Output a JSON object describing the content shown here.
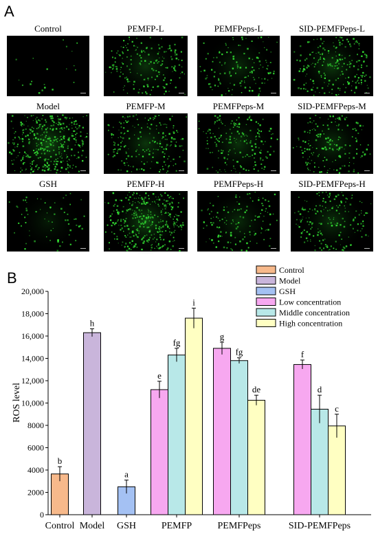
{
  "panel_a": {
    "label": "A",
    "images": [
      {
        "caption": "Control",
        "intensity": 0.03
      },
      {
        "caption": "PEMFP-L",
        "intensity": 0.45
      },
      {
        "caption": "PEMFPeps-L",
        "intensity": 0.35
      },
      {
        "caption": "SID-PEMFPeps-L",
        "intensity": 0.55
      },
      {
        "caption": "Model",
        "intensity": 0.95
      },
      {
        "caption": "PEMFP-M",
        "intensity": 0.5
      },
      {
        "caption": "PEMFPeps-M",
        "intensity": 0.45
      },
      {
        "caption": "SID-PEMFPeps-M",
        "intensity": 0.45
      },
      {
        "caption": "GSH",
        "intensity": 0.15
      },
      {
        "caption": "PEMFP-H",
        "intensity": 0.9
      },
      {
        "caption": "PEMFPeps-H",
        "intensity": 0.35
      },
      {
        "caption": "SID-PEMFPeps-H",
        "intensity": 0.45
      }
    ],
    "fluorescence_color": "#33dd33"
  },
  "panel_b": {
    "label": "B"
  },
  "chart_data": {
    "type": "bar",
    "title": "",
    "xlabel": "",
    "ylabel": "ROS level",
    "ylim": [
      0,
      20000
    ],
    "y_ticks": [
      0,
      2000,
      4000,
      6000,
      8000,
      10000,
      12000,
      14000,
      16000,
      18000,
      20000
    ],
    "y_tick_labels": [
      "0",
      "2000",
      "4000",
      "6000",
      "8000",
      "10,000",
      "12,000",
      "14,000",
      "16,000",
      "18,000",
      "20,000"
    ],
    "grid": false,
    "legend_position": "top-right",
    "categories": [
      "Control",
      "Model",
      "GSH",
      "PEMFP",
      "PEMFPeps",
      "SID-PEMFPeps"
    ],
    "series": [
      {
        "name": "Control",
        "color": "#f7b98b",
        "values": [
          3650,
          null,
          null,
          null,
          null,
          null
        ],
        "errors": [
          650,
          null,
          null,
          null,
          null,
          null
        ],
        "letters": [
          "b",
          null,
          null,
          null,
          null,
          null
        ]
      },
      {
        "name": "Model",
        "color": "#c9b5db",
        "values": [
          null,
          16300,
          null,
          null,
          null,
          null
        ],
        "errors": [
          null,
          350,
          null,
          null,
          null,
          null
        ],
        "letters": [
          null,
          "h",
          null,
          null,
          null,
          null
        ]
      },
      {
        "name": "GSH",
        "color": "#a4c1f3",
        "values": [
          null,
          null,
          2500,
          null,
          null,
          null
        ],
        "errors": [
          null,
          null,
          600,
          null,
          null,
          null
        ],
        "letters": [
          null,
          null,
          "a",
          null,
          null,
          null
        ]
      },
      {
        "name": "Low concentration",
        "color": "#f7a8f0",
        "values": [
          null,
          null,
          null,
          11200,
          14900,
          13450
        ],
        "errors": [
          null,
          null,
          null,
          750,
          550,
          400
        ],
        "letters": [
          null,
          null,
          null,
          "e",
          "g",
          "f"
        ]
      },
      {
        "name": "Middle concentration",
        "color": "#b8e8e8",
        "values": [
          null,
          null,
          null,
          14300,
          13800,
          9450
        ],
        "errors": [
          null,
          null,
          null,
          600,
          250,
          1250
        ],
        "letters": [
          null,
          null,
          null,
          "fg",
          "fg",
          "d"
        ]
      },
      {
        "name": "High concentration",
        "color": "#ffffc2",
        "values": [
          null,
          null,
          null,
          17600,
          10250,
          7950
        ],
        "errors": [
          null,
          null,
          null,
          900,
          450,
          1050
        ],
        "letters": [
          null,
          null,
          null,
          "i",
          "de",
          "c"
        ]
      }
    ]
  }
}
